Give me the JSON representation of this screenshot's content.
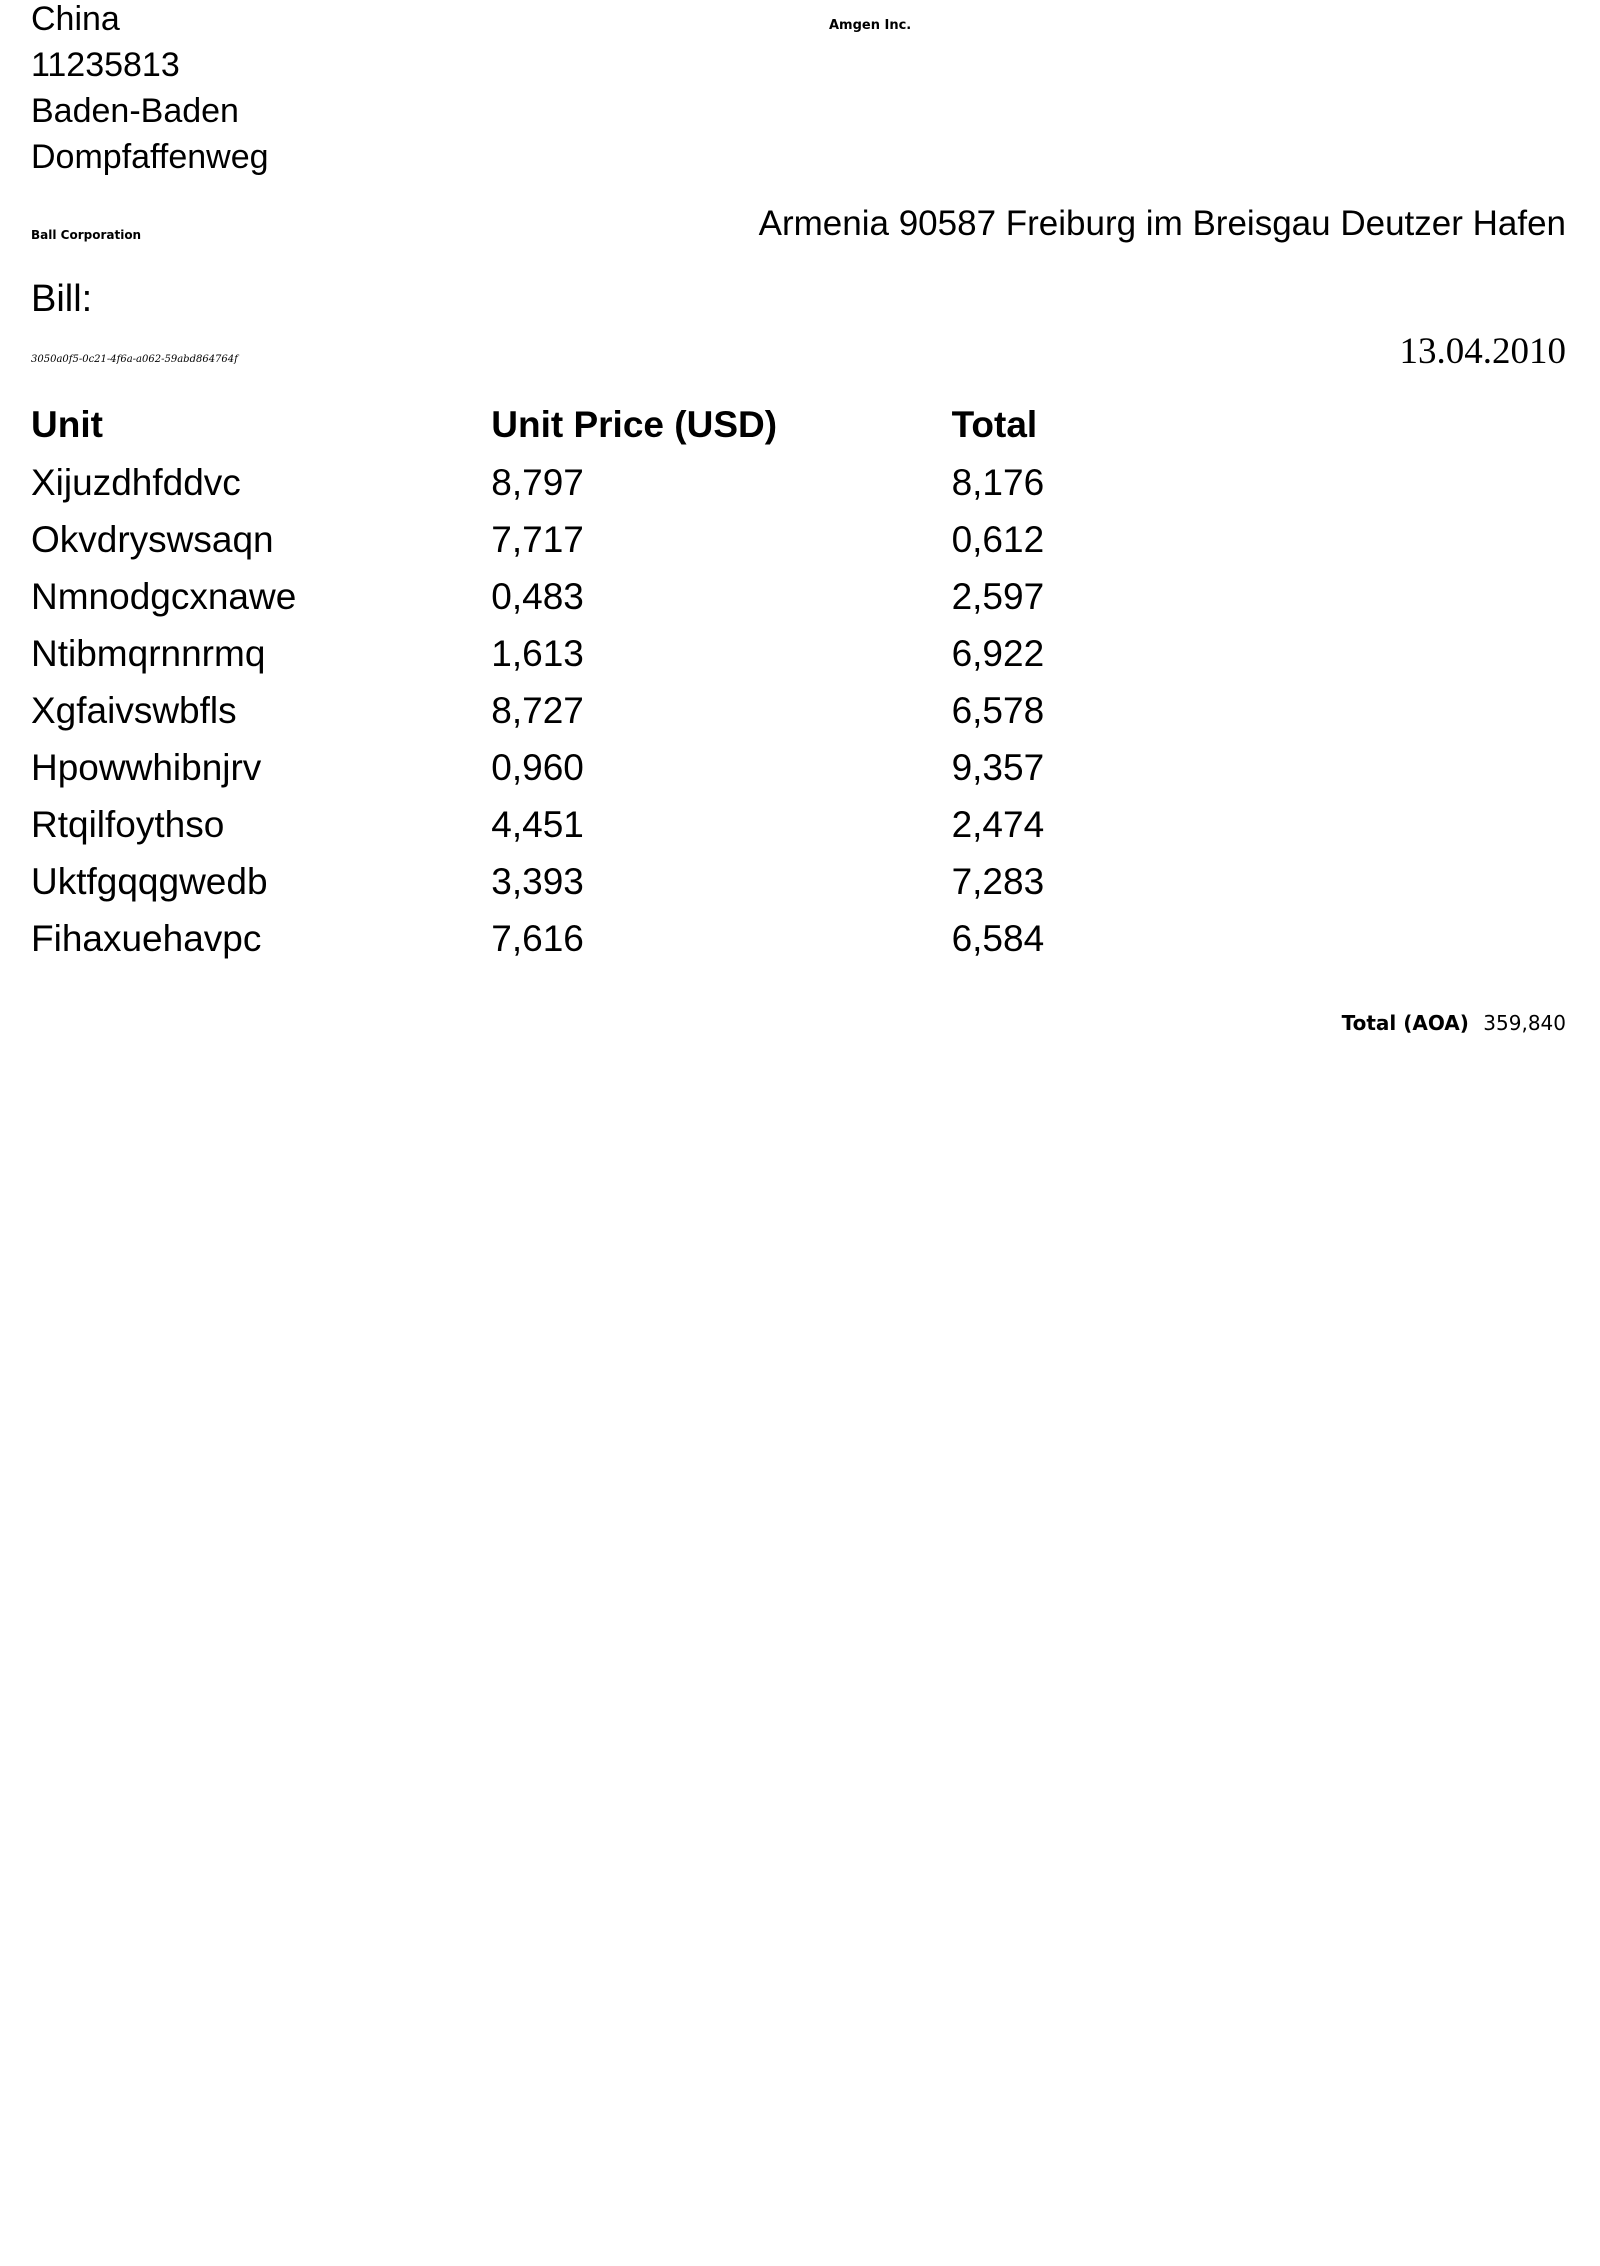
{
  "sender": {
    "address_lines": [
      "China",
      "11235813",
      "Baden-Baden",
      "Dompfaffenweg"
    ]
  },
  "company_top": "Amgen Inc.",
  "company_left": "Ball Corporation",
  "recipient_address": "Armenia 90587 Freiburg im Breisgau Deutzer Hafen",
  "bill_heading": "Bill:",
  "invoice_id": "3050a0f5-0c21-4f6a-a062-59abd864764f",
  "date": "13.04.2010",
  "table": {
    "headers": {
      "unit": "Unit",
      "unit_price": "Unit Price (USD)",
      "total": "Total"
    },
    "rows": [
      {
        "unit": "Xijuzdhfddvc",
        "unit_price": "8,797",
        "total": "8,176"
      },
      {
        "unit": "Okvdryswsaqn",
        "unit_price": "7,717",
        "total": "0,612"
      },
      {
        "unit": "Nmnodgcxnawe",
        "unit_price": "0,483",
        "total": "2,597"
      },
      {
        "unit": "Ntibmqrnnrmq",
        "unit_price": "1,613",
        "total": "6,922"
      },
      {
        "unit": "Xgfaivswbfls",
        "unit_price": "8,727",
        "total": "6,578"
      },
      {
        "unit": "Hpowwhibnjrv",
        "unit_price": "0,960",
        "total": "9,357"
      },
      {
        "unit": "Rtqilfoythso",
        "unit_price": "4,451",
        "total": "2,474"
      },
      {
        "unit": "Uktfgqqgwedb",
        "unit_price": "3,393",
        "total": "7,283"
      },
      {
        "unit": "Fihaxuehavpc",
        "unit_price": "7,616",
        "total": "6,584"
      }
    ]
  },
  "grand_total": {
    "label": "Total (AOA)",
    "value": "359,840"
  }
}
